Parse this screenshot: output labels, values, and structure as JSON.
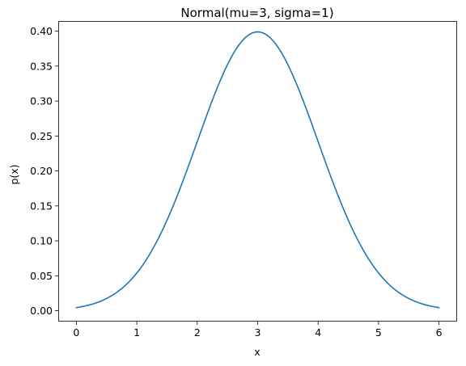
{
  "chart_data": {
    "type": "line",
    "title": "Normal(mu=3, sigma=1)",
    "xlabel": "x",
    "ylabel": "p(x)",
    "xlim": [
      -0.3,
      6.3
    ],
    "ylim": [
      -0.0155,
      0.4145
    ],
    "x_ticks": [
      0,
      1,
      2,
      3,
      4,
      5,
      6
    ],
    "x_tick_labels": [
      "0",
      "1",
      "2",
      "3",
      "4",
      "5",
      "6"
    ],
    "y_ticks": [
      0.0,
      0.05,
      0.1,
      0.15,
      0.2,
      0.25,
      0.3,
      0.35,
      0.4
    ],
    "y_tick_labels": [
      "0.00",
      "0.05",
      "0.10",
      "0.15",
      "0.20",
      "0.25",
      "0.30",
      "0.35",
      "0.40"
    ],
    "grid": false,
    "line_color": "#1f77b4",
    "series": [
      {
        "x": [
          0.0,
          0.25,
          0.5,
          0.75,
          1.0,
          1.25,
          1.5,
          1.75,
          2.0,
          2.25,
          2.5,
          2.75,
          3.0,
          3.25,
          3.5,
          3.75,
          4.0,
          4.25,
          4.5,
          4.75,
          5.0,
          5.25,
          5.5,
          5.75,
          6.0
        ],
        "values": [
          0.0044,
          0.0091,
          0.0175,
          0.0317,
          0.054,
          0.0863,
          0.1295,
          0.1826,
          0.242,
          0.3011,
          0.3521,
          0.3867,
          0.3989,
          0.3867,
          0.3521,
          0.3011,
          0.242,
          0.1826,
          0.1295,
          0.0863,
          0.054,
          0.0317,
          0.0175,
          0.0091,
          0.0044
        ]
      }
    ]
  }
}
